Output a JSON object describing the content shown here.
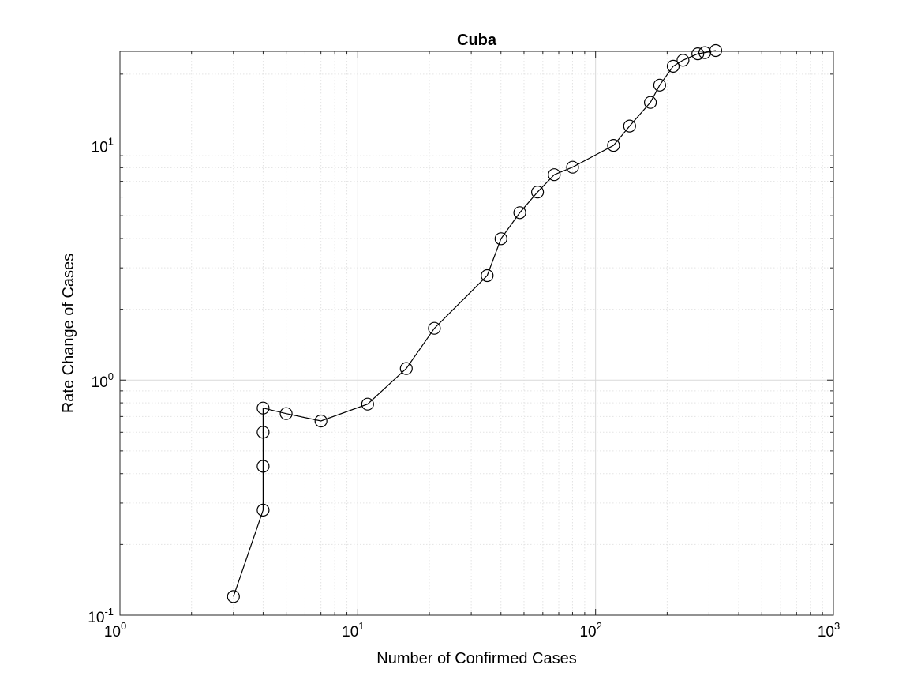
{
  "chart_data": {
    "type": "line",
    "title": "Cuba",
    "xlabel": "Number of Confirmed Cases",
    "ylabel": "Rate Change of Cases",
    "xscale": "log",
    "yscale": "log",
    "xlim": [
      1,
      1000
    ],
    "ylim": [
      0.1,
      25
    ],
    "grid": true,
    "minor_grid": true,
    "x_ticks": [
      {
        "base": "10",
        "exp": "0",
        "value": 1
      },
      {
        "base": "10",
        "exp": "1",
        "value": 10
      },
      {
        "base": "10",
        "exp": "2",
        "value": 100
      },
      {
        "base": "10",
        "exp": "3",
        "value": 1000
      }
    ],
    "y_ticks": [
      {
        "base": "10",
        "exp": "-1",
        "value": 0.1
      },
      {
        "base": "10",
        "exp": "0",
        "value": 1
      },
      {
        "base": "10",
        "exp": "1",
        "value": 10
      }
    ],
    "series": [
      {
        "color": "#000000",
        "marker": "circle",
        "x": [
          3,
          4,
          4,
          4,
          4,
          5,
          7,
          11,
          16,
          21,
          35,
          40,
          48,
          57,
          67,
          80,
          119,
          139,
          170,
          186,
          212,
          233,
          269,
          288,
          320
        ],
        "y": [
          0.12,
          0.28,
          0.43,
          0.6,
          0.76,
          0.72,
          0.67,
          0.79,
          1.12,
          1.66,
          2.78,
          3.99,
          5.15,
          6.3,
          7.47,
          8.04,
          9.95,
          12.03,
          15.16,
          17.96,
          21.6,
          22.9,
          24.4,
          24.7,
          25.2
        ]
      }
    ]
  }
}
